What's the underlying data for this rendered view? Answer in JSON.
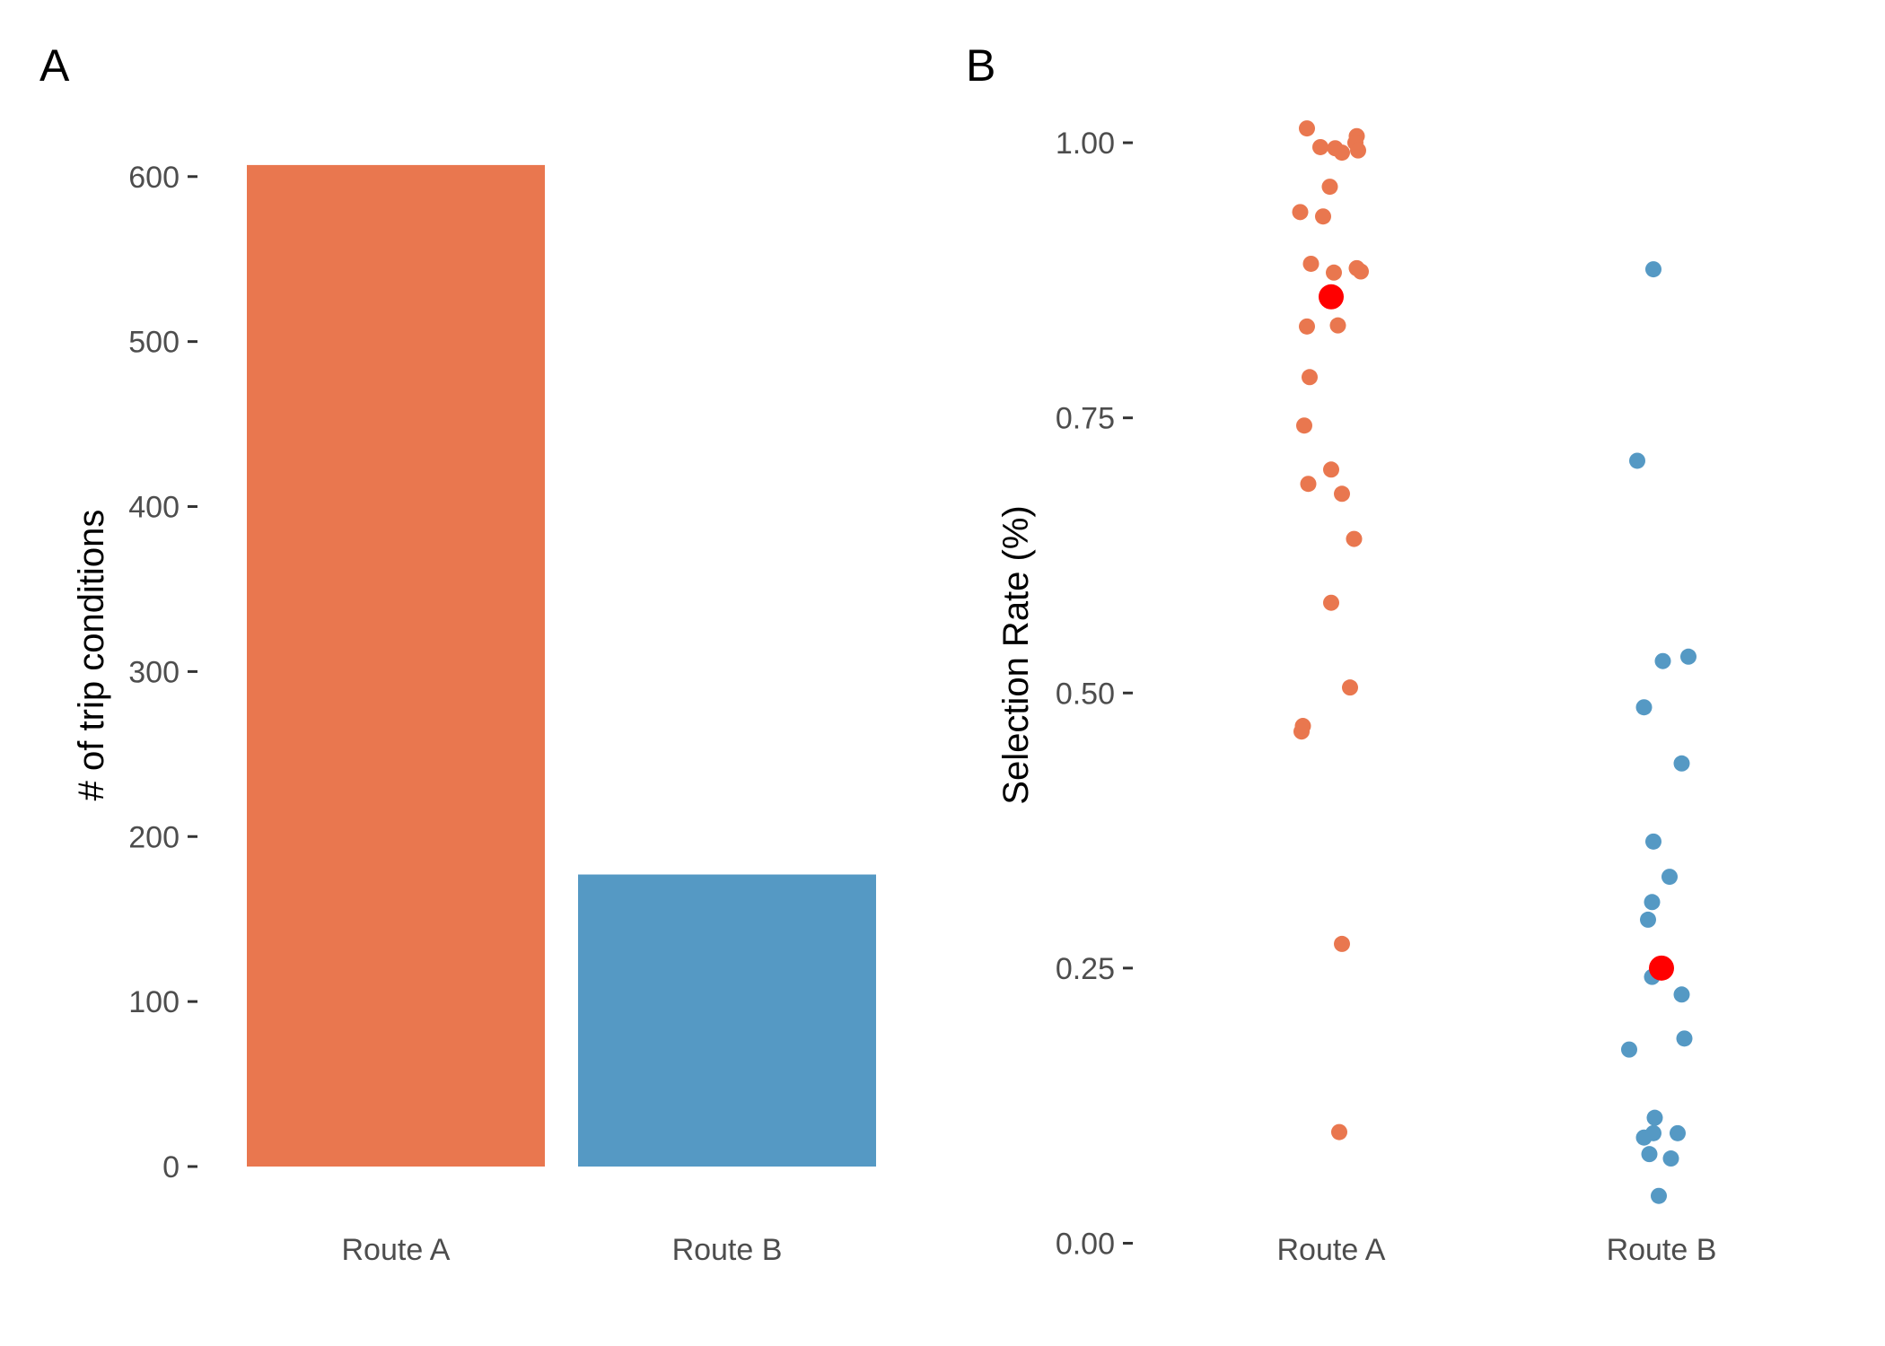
{
  "colors": {
    "route_a": "#E9774F",
    "route_b": "#5599C4",
    "mean_marker": "#FF0000"
  },
  "chart_data": [
    {
      "panel": "A",
      "type": "bar",
      "categories": [
        "Route A",
        "Route B"
      ],
      "values": [
        607,
        177
      ],
      "xlabel": "",
      "ylabel": "# of trip conditions",
      "ylim": [
        0,
        620
      ],
      "yticks": [
        0,
        100,
        200,
        300,
        400,
        500,
        600
      ],
      "grid": false,
      "legend": "none"
    },
    {
      "panel": "B",
      "type": "scatter",
      "categories": [
        "Route A",
        "Route B"
      ],
      "xlabel": "",
      "ylabel": "Selection Rate (%)",
      "ylim": [
        -0.02,
        1.04
      ],
      "yticks": [
        "0.00",
        "0.25",
        "0.50",
        "0.75",
        "1.00"
      ],
      "grid": false,
      "legend": "none",
      "series": [
        {
          "category": "Route A",
          "points": [
            [
              -0.18,
              1.013
            ],
            [
              -0.08,
              0.996
            ],
            [
              0.03,
              0.995
            ],
            [
              0.08,
              0.991
            ],
            [
              0.19,
              1.006
            ],
            [
              0.18,
              1.0
            ],
            [
              0.2,
              0.993
            ],
            [
              -0.01,
              0.96
            ],
            [
              -0.23,
              0.937
            ],
            [
              -0.06,
              0.933
            ],
            [
              -0.15,
              0.89
            ],
            [
              0.02,
              0.882
            ],
            [
              0.19,
              0.886
            ],
            [
              0.22,
              0.883
            ],
            [
              -0.18,
              0.833
            ],
            [
              0.05,
              0.834
            ],
            [
              -0.16,
              0.787
            ],
            [
              -0.2,
              0.743
            ],
            [
              0.0,
              0.703
            ],
            [
              -0.17,
              0.69
            ],
            [
              0.08,
              0.681
            ],
            [
              0.17,
              0.64
            ],
            [
              0.0,
              0.582
            ],
            [
              0.14,
              0.505
            ],
            [
              -0.21,
              0.47
            ],
            [
              -0.22,
              0.465
            ],
            [
              0.08,
              0.272
            ],
            [
              0.06,
              0.101
            ]
          ],
          "mean": 0.86
        },
        {
          "category": "Route B",
          "points": [
            [
              -0.06,
              0.885
            ],
            [
              -0.18,
              0.711
            ],
            [
              0.01,
              0.529
            ],
            [
              0.2,
              0.533
            ],
            [
              -0.13,
              0.487
            ],
            [
              0.15,
              0.436
            ],
            [
              -0.06,
              0.365
            ],
            [
              0.06,
              0.333
            ],
            [
              -0.07,
              0.31
            ],
            [
              -0.1,
              0.294
            ],
            [
              -0.07,
              0.242
            ],
            [
              0.15,
              0.226
            ],
            [
              0.17,
              0.186
            ],
            [
              -0.24,
              0.176
            ],
            [
              -0.05,
              0.114
            ],
            [
              -0.13,
              0.096
            ],
            [
              -0.06,
              0.1
            ],
            [
              0.12,
              0.1
            ],
            [
              -0.09,
              0.081
            ],
            [
              0.07,
              0.077
            ],
            [
              -0.02,
              0.043
            ]
          ],
          "mean": 0.25
        }
      ]
    }
  ]
}
